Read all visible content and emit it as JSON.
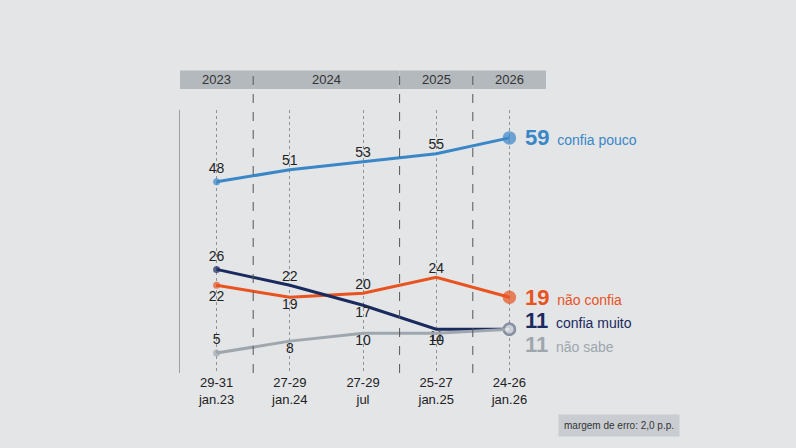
{
  "chart_data": {
    "type": "line",
    "categories": [
      "29-31 jan.23",
      "27-29 jan.24",
      "27-29 jul",
      "25-27 jan.25",
      "24-26 jan.26"
    ],
    "periods": [
      {
        "label": "2023",
        "categories": [
          "29-31 jan.23"
        ]
      },
      {
        "label": "2024",
        "categories": [
          "27-29 jan.24",
          "27-29 jul"
        ]
      },
      {
        "label": "2025",
        "categories": [
          "25-27 jan.25"
        ]
      },
      {
        "label": "2026",
        "categories": [
          "24-26 jan.26"
        ]
      }
    ],
    "series": [
      {
        "name": "confia pouco",
        "color": "#3a87c8",
        "values": [
          48,
          51,
          53,
          55,
          59
        ]
      },
      {
        "name": "não confia",
        "color": "#e8531f",
        "values": [
          22,
          19,
          20,
          24,
          19
        ]
      },
      {
        "name": "confia muito",
        "color": "#1b2a5e",
        "values": [
          26,
          22,
          17,
          11,
          11
        ]
      },
      {
        "name": "não sabe",
        "color": "#9ea6ae",
        "values": [
          5,
          8,
          10,
          10,
          11
        ]
      }
    ],
    "ylim": [
      0,
      66
    ],
    "yticks": [],
    "tick_labels": "x",
    "grid": true,
    "data_labels": true,
    "annotations": [
      "margem de erro: 2,0 p.p."
    ]
  }
}
